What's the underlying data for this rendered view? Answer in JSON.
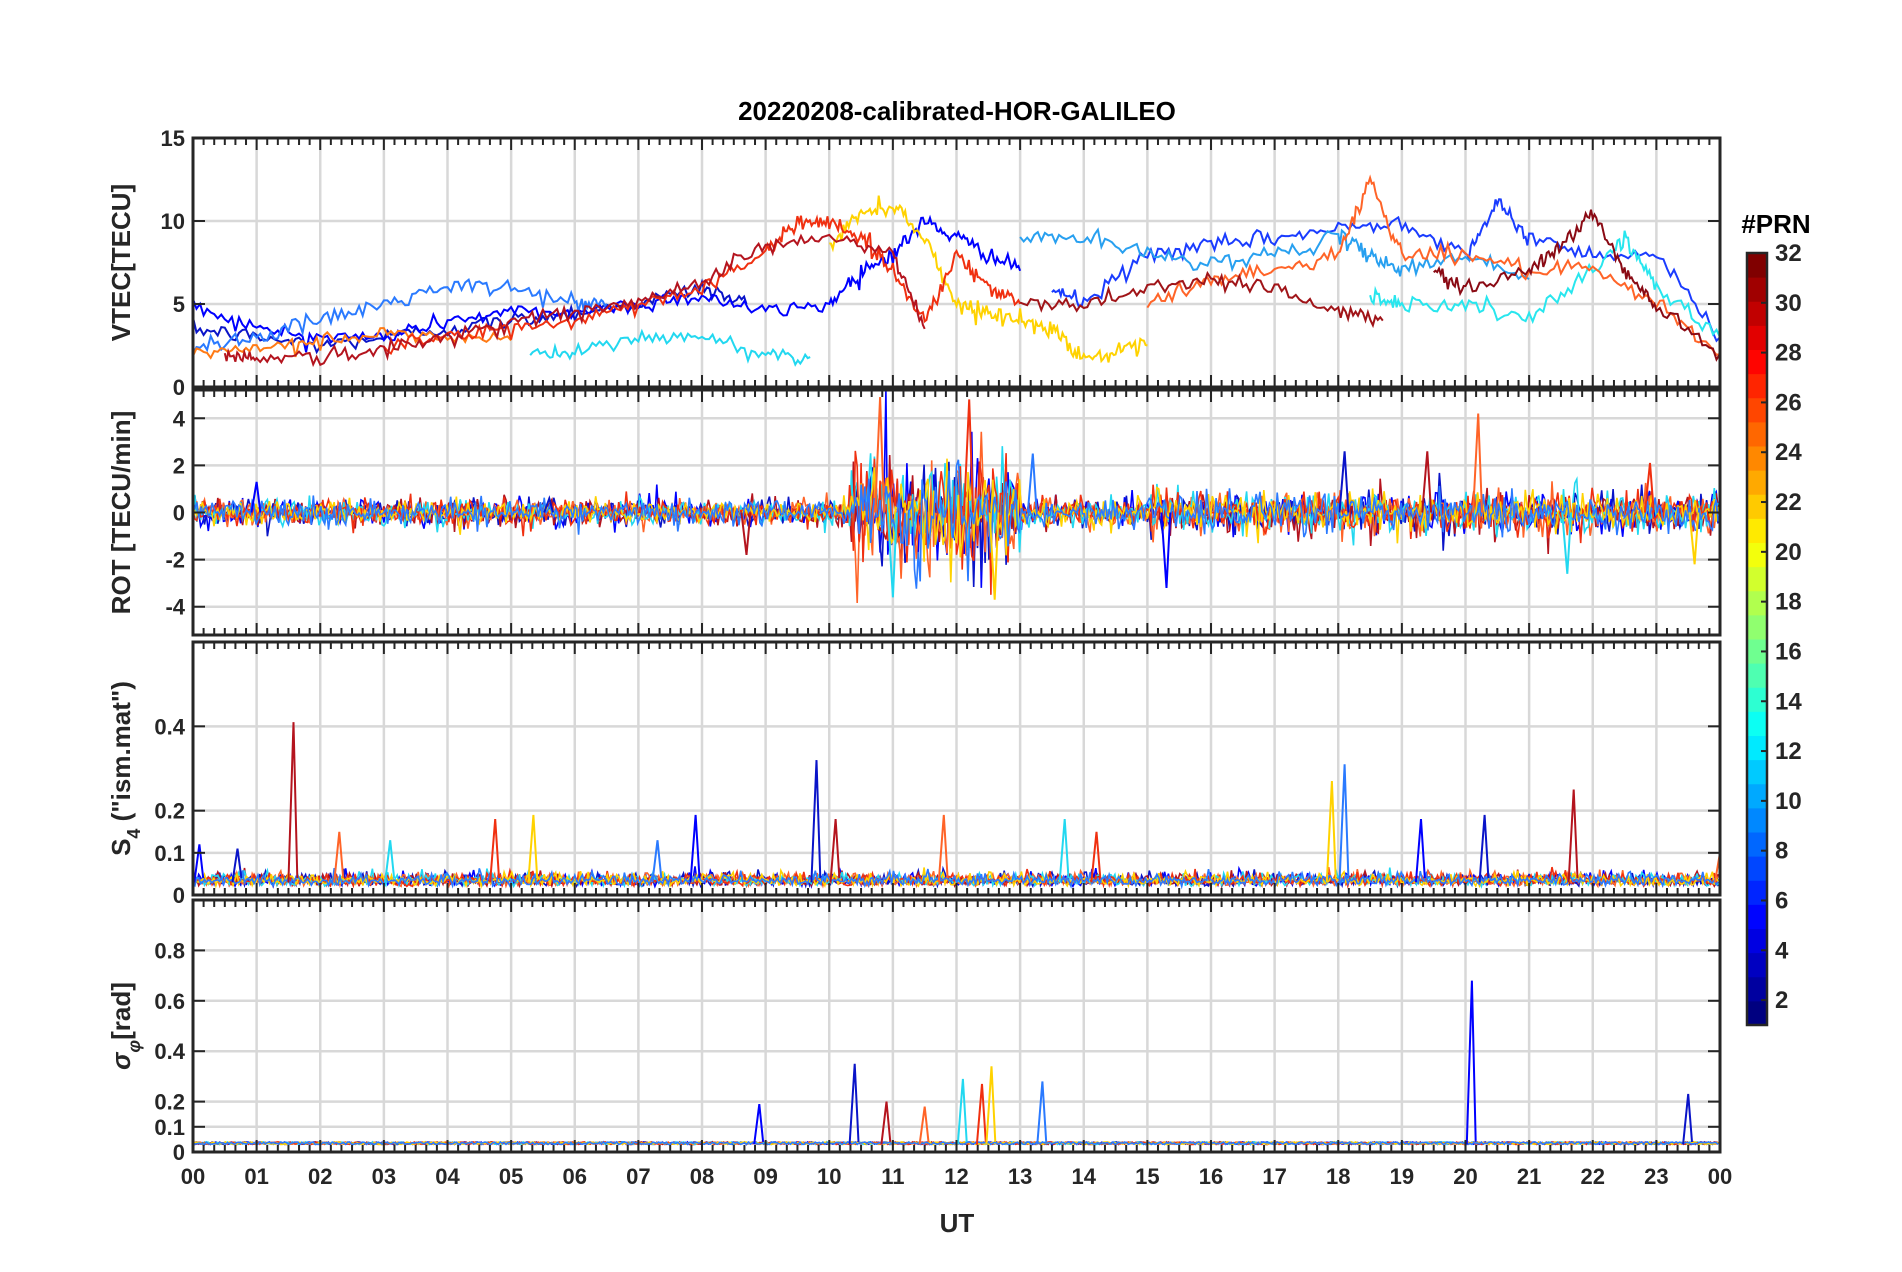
{
  "chart_data": {
    "type": "line",
    "title": "20220208-calibrated-HOR-GALILEO",
    "xlabel": "UT",
    "x_ticks": [
      "00",
      "01",
      "02",
      "03",
      "04",
      "05",
      "06",
      "07",
      "08",
      "09",
      "10",
      "11",
      "12",
      "13",
      "14",
      "15",
      "16",
      "17",
      "18",
      "19",
      "20",
      "21",
      "22",
      "23",
      "00"
    ],
    "x_range_hours": [
      0,
      24
    ],
    "grid": true,
    "colorbar": {
      "title": "#PRN",
      "range": [
        1,
        32
      ],
      "ticks": [
        "2",
        "4",
        "6",
        "8",
        "10",
        "12",
        "14",
        "16",
        "18",
        "20",
        "22",
        "24",
        "26",
        "28",
        "30",
        "32"
      ],
      "colormap": "jet"
    },
    "panels": [
      {
        "id": "vtec",
        "ylabel": "VTEC[TECU]",
        "ylim": [
          0,
          15
        ],
        "yticks": [
          "0",
          "5",
          "10",
          "15"
        ],
        "series": [
          {
            "prn": 2,
            "color": "#0a14c8",
            "x": [
              0,
              1,
              2,
              3,
              4,
              5,
              6,
              7,
              8,
              8.7
            ],
            "y": [
              3.5,
              3,
              2.5,
              3,
              3.5,
              4,
              4.5,
              5,
              6,
              5
            ]
          },
          {
            "prn": 4,
            "color": "#0000ff",
            "x": [
              0,
              1,
              2,
              3,
              4,
              5,
              6,
              7,
              8,
              9,
              10,
              10.5,
              11,
              11.5,
              12,
              12.5,
              13
            ],
            "y": [
              5,
              3.5,
              3,
              3,
              4,
              4.5,
              4.5,
              5,
              5.5,
              4.5,
              5,
              7,
              8,
              10,
              9,
              8,
              7
            ]
          },
          {
            "prn": 6,
            "color": "#1a3cff",
            "x": [
              13.5,
              14,
              15,
              16,
              17,
              18,
              19,
              20,
              20.5,
              21,
              22,
              23,
              24
            ],
            "y": [
              6,
              5,
              8,
              8.5,
              9,
              9.5,
              10,
              8,
              11,
              9,
              8,
              8,
              3
            ]
          },
          {
            "prn": 8,
            "color": "#2a7aff",
            "x": [
              0,
              1,
              2,
              3,
              4,
              5,
              6,
              6.5
            ],
            "y": [
              2.5,
              3,
              4,
              5,
              6,
              6,
              5,
              5
            ]
          },
          {
            "prn": 10,
            "color": "#28a0f0",
            "x": [
              13,
              14,
              15,
              16,
              17,
              18,
              18.5,
              19,
              20,
              21
            ],
            "y": [
              9,
              9,
              8,
              7.5,
              8,
              9,
              8,
              7,
              8,
              6.5
            ]
          },
          {
            "prn": 12,
            "color": "#22d8f0",
            "x": [
              5.3,
              6,
              7,
              8,
              9,
              9.7
            ],
            "y": [
              2,
              2,
              3,
              3,
              2,
              1.8
            ]
          },
          {
            "prn": 13,
            "color": "#28e6ee",
            "x": [
              18.5,
              19,
              20,
              21,
              22,
              22.5,
              23,
              24
            ],
            "y": [
              5.5,
              5,
              5,
              4,
              7,
              9,
              6,
              3
            ]
          },
          {
            "prn": 20,
            "color": "#ffd200",
            "x": [
              10,
              10.5,
              11,
              11.5,
              12,
              12.5,
              13,
              13.5,
              14,
              14.5,
              15
            ],
            "y": [
              8.5,
              10.5,
              11,
              9,
              5,
              4.5,
              4,
              3.5,
              1.8,
              2,
              2.5
            ]
          },
          {
            "prn": 24,
            "color": "#ff7a14",
            "x": [
              0,
              1,
              2,
              3,
              4,
              5
            ],
            "y": [
              2,
              2.2,
              2.8,
              3.2,
              3,
              2.8
            ]
          },
          {
            "prn": 25,
            "color": "#ff6428",
            "x": [
              15,
              16,
              17,
              18,
              18.5,
              19,
              20,
              21,
              22,
              23,
              24
            ],
            "y": [
              5,
              6.5,
              7,
              8,
              12.5,
              8,
              8,
              7,
              7,
              5,
              2
            ]
          },
          {
            "prn": 27,
            "color": "#f03010",
            "x": [
              3,
              4,
              5,
              6,
              7,
              8,
              9,
              9.5,
              10,
              10.5,
              11,
              11.5,
              12,
              12.5,
              13
            ],
            "y": [
              2.5,
              3,
              3.5,
              4,
              5,
              6,
              8,
              10,
              10,
              9,
              7,
              4,
              8,
              6,
              5
            ]
          },
          {
            "prn": 30,
            "color": "#b4141e",
            "x": [
              0.5,
              1,
              2,
              3,
              4,
              5,
              6,
              7,
              8,
              9,
              10,
              11,
              11.5
            ],
            "y": [
              2,
              1.8,
              1.8,
              2.2,
              3,
              4,
              4.5,
              5,
              6.5,
              8.5,
              9,
              8,
              3.5
            ]
          },
          {
            "prn": 31,
            "color": "#a01418",
            "x": [
              13,
              14,
              15,
              16,
              17,
              18,
              18.7
            ],
            "y": [
              5,
              5,
              6,
              6.5,
              6,
              4.5,
              4
            ]
          },
          {
            "prn": 32,
            "color": "#8a0a14",
            "x": [
              19.5,
              20,
              21,
              21.5,
              22,
              22.5,
              23,
              24
            ],
            "y": [
              7,
              6,
              7,
              8.5,
              10.5,
              7,
              5,
              2
            ]
          }
        ]
      },
      {
        "id": "rot",
        "ylabel": "ROT [TECU/min]",
        "ylim": [
          -5.2,
          5.2
        ],
        "yticks": [
          "-4",
          "-2",
          "0",
          "2",
          "4"
        ],
        "note_series": "dense noise around 0; strongest activity 10.3-13 UT (peaks ~±5); spikes at 15.3 (~2.8,-3.2), 20.2 (~4.2,-2.2), 21.6 (~-2.6)",
        "peaks": {
          "x": [
            1.0,
            5.6,
            8.7,
            10.8,
            11.0,
            12.2,
            12.6,
            13.2,
            15.3,
            18.1,
            19.4,
            20.2,
            21.6,
            22.9,
            23.6
          ],
          "y": [
            1.3,
            0.6,
            -1.8,
            4.9,
            -3.6,
            4.8,
            -3.7,
            2.5,
            -3.2,
            2.6,
            2.6,
            4.2,
            -2.6,
            2.1,
            -2.2
          ]
        }
      },
      {
        "id": "s4",
        "ylabel": "S4 (\"ism.mat\")",
        "ylim": [
          0,
          0.6
        ],
        "yticks": [
          "0",
          "0.1",
          "0.2",
          "0.4"
        ],
        "peaks": {
          "x": [
            0.1,
            0.7,
            1.58,
            2.3,
            3.1,
            4.75,
            5.35,
            7.3,
            7.9,
            9.8,
            10.1,
            11.8,
            13.7,
            14.2,
            17.9,
            18.1,
            19.3,
            20.3,
            21.7,
            24
          ],
          "y": [
            0.12,
            0.11,
            0.41,
            0.15,
            0.13,
            0.18,
            0.19,
            0.13,
            0.19,
            0.32,
            0.18,
            0.19,
            0.18,
            0.15,
            0.27,
            0.31,
            0.18,
            0.19,
            0.25,
            0.1
          ]
        }
      },
      {
        "id": "sigphi",
        "ylabel": "σφ[rad]",
        "ylim": [
          0,
          1
        ],
        "yticks": [
          "0",
          "0.1",
          "0.2",
          "0.4",
          "0.6",
          "0.8"
        ],
        "peaks": {
          "x": [
            8.9,
            10.4,
            10.9,
            11.5,
            12.1,
            12.4,
            12.55,
            13.35,
            20.1,
            23.5
          ],
          "y": [
            0.19,
            0.35,
            0.2,
            0.18,
            0.29,
            0.27,
            0.34,
            0.28,
            0.68,
            0.23
          ]
        }
      }
    ]
  }
}
